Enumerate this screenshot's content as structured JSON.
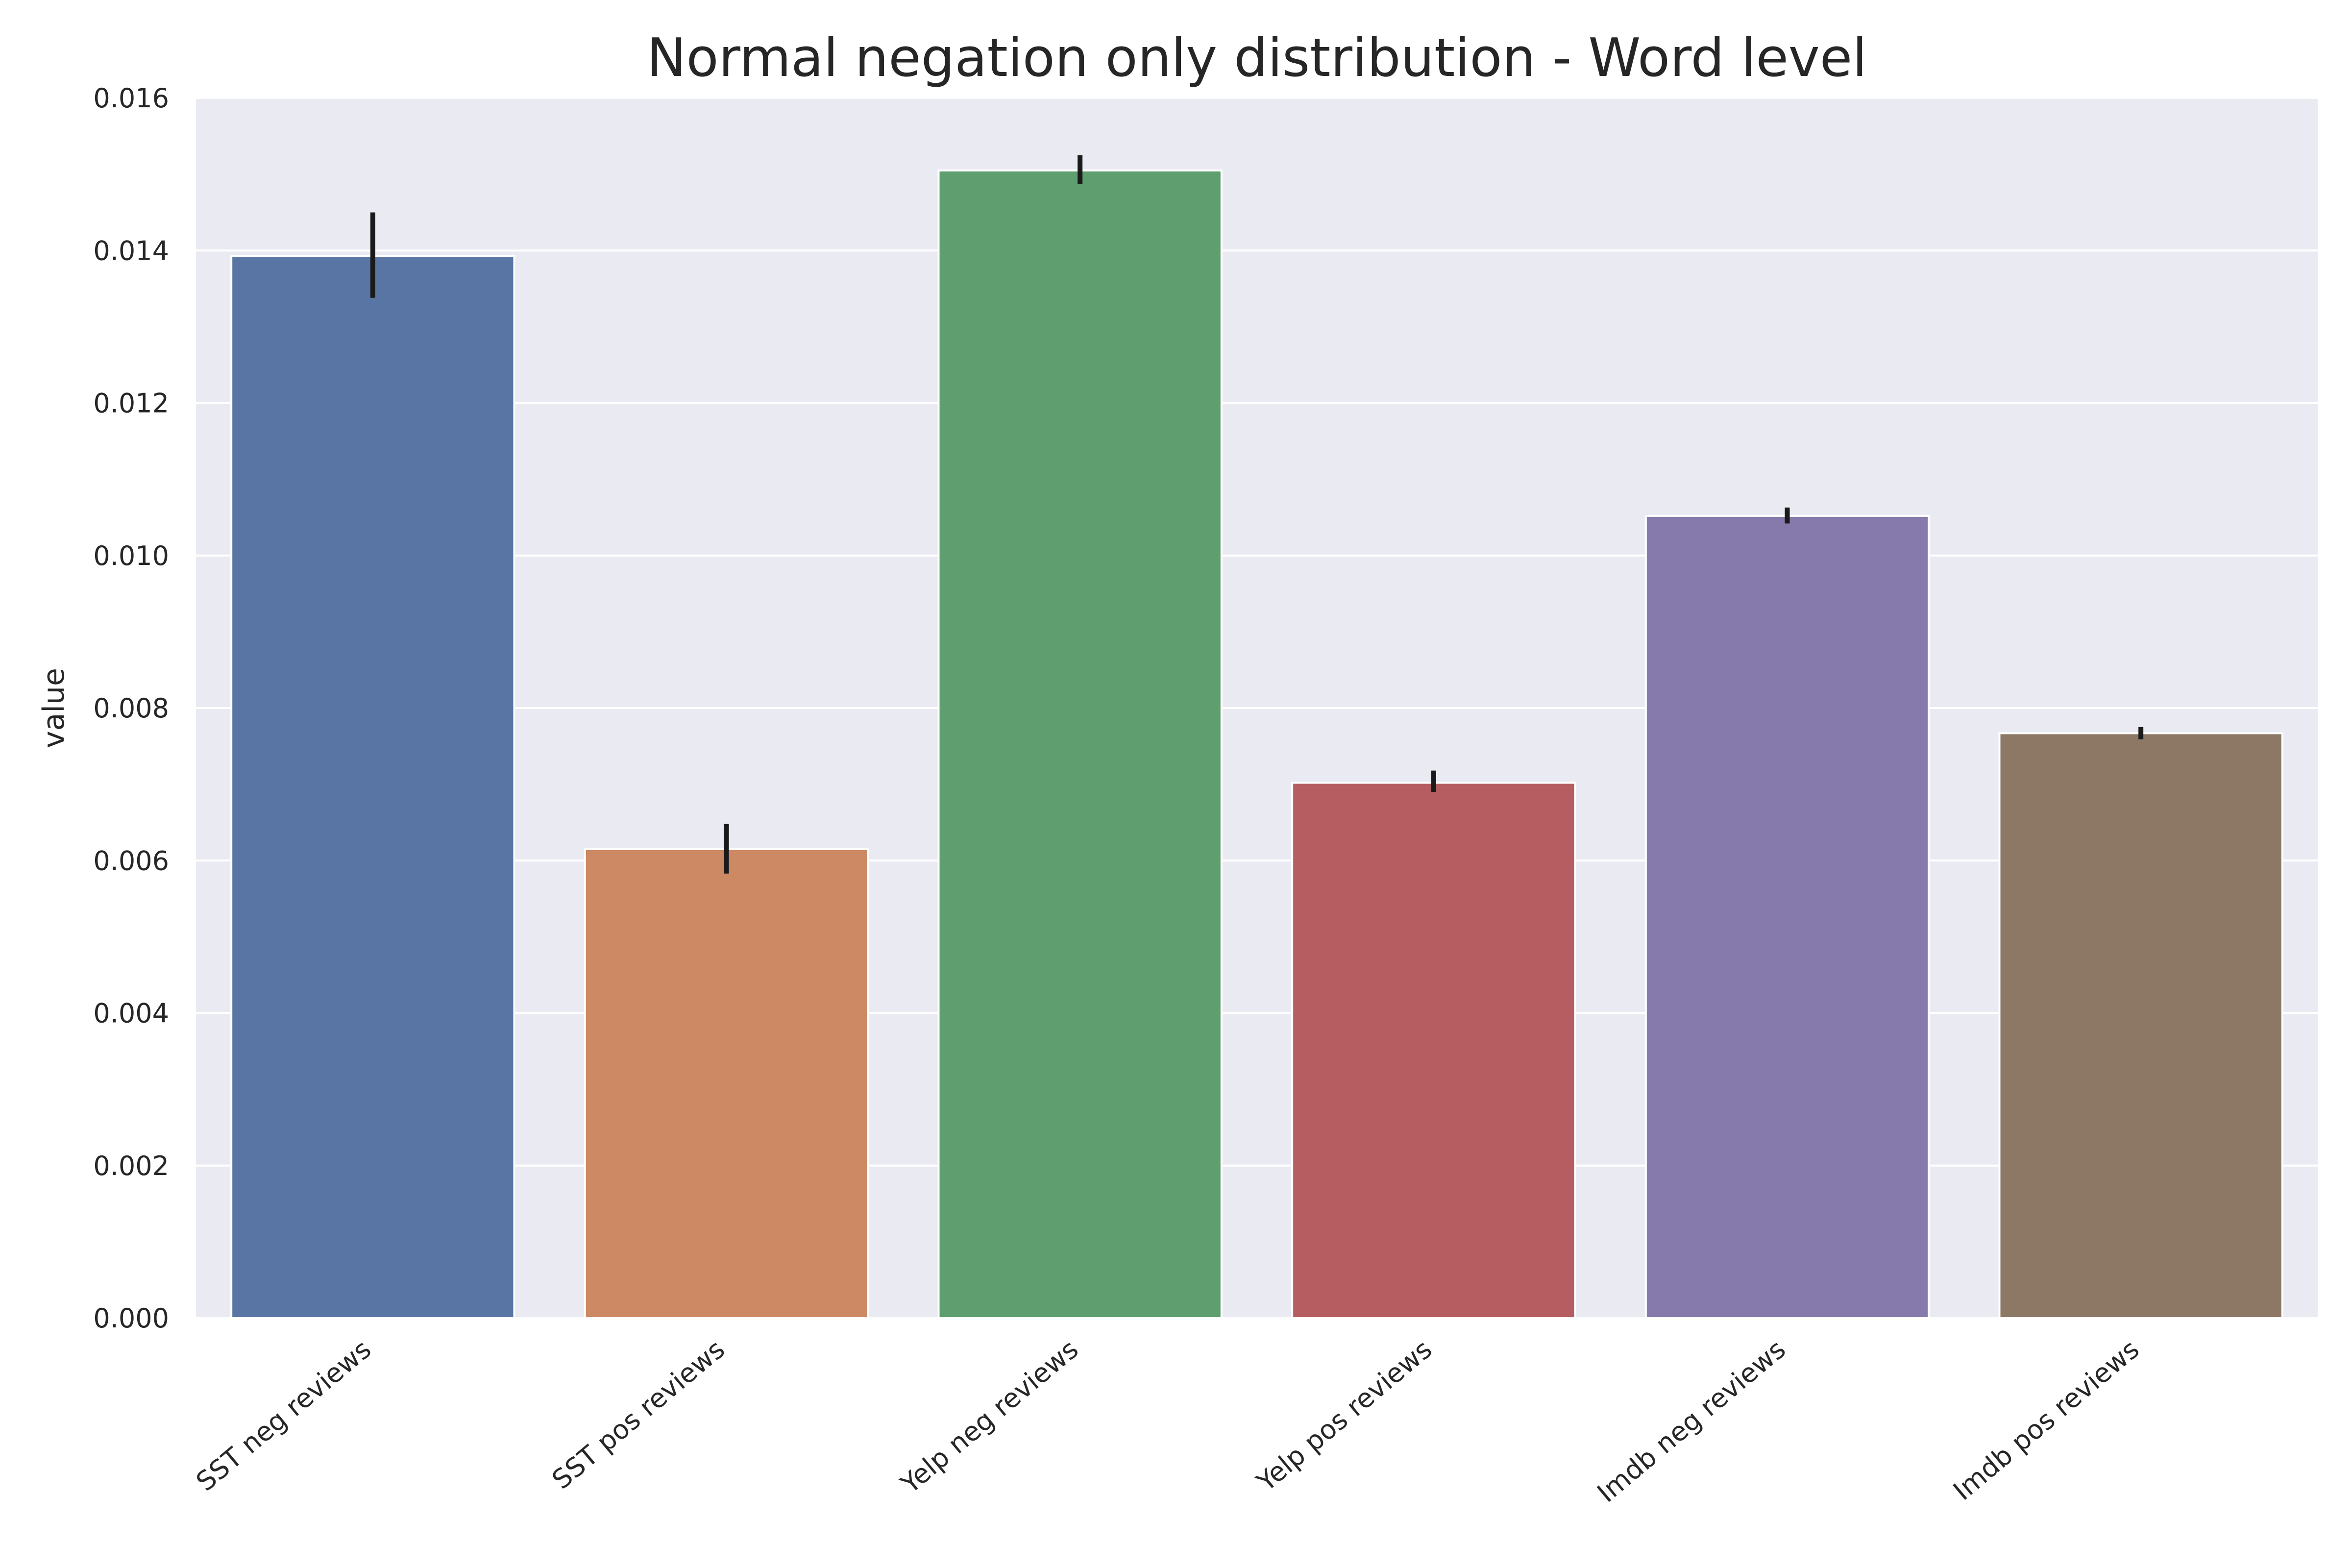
{
  "chart_data": {
    "type": "bar",
    "title": "Normal negation only distribution - Word level",
    "xlabel": "",
    "ylabel": "value",
    "categories": [
      "SST neg reviews",
      "SST pos reviews",
      "Yelp neg reviews",
      "Yelp pos reviews",
      "Imdb neg reviews",
      "Imdb pos reviews"
    ],
    "values": [
      0.01393,
      0.00615,
      0.01505,
      0.00702,
      0.01052,
      0.00767
    ],
    "error_low": [
      0.01338,
      0.00583,
      0.01487,
      0.0069,
      0.01042,
      0.00759
    ],
    "error_high": [
      0.0145,
      0.00648,
      0.01525,
      0.00718,
      0.01063,
      0.00775
    ],
    "colors": [
      "#5875a4",
      "#cc8963",
      "#5f9e6e",
      "#b55d60",
      "#857aab",
      "#8d7866"
    ],
    "ylim": [
      0,
      0.016
    ],
    "yticks": [
      "0.000",
      "0.002",
      "0.004",
      "0.006",
      "0.008",
      "0.010",
      "0.012",
      "0.014",
      "0.016"
    ],
    "grid": true,
    "background": "#eaeaf2"
  }
}
